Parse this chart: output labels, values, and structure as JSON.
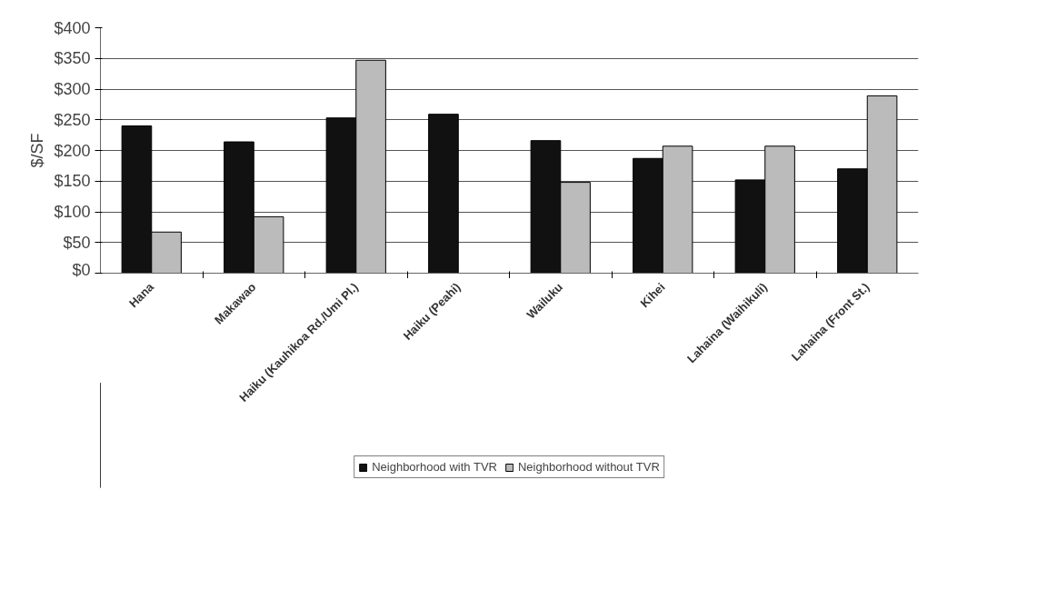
{
  "chart_data": {
    "type": "bar",
    "ylabel": "$/SF",
    "categories": [
      "Hana",
      "Makawao",
      "Haiku (Kauhikoa Rd./Umi Pl.)",
      "Haiku (Peahi)",
      "Wailuku",
      "Kihei",
      "Lahaina (Waihikuli)",
      "Lahaina (Front St.)"
    ],
    "series": [
      {
        "name": "Neighborhood with TVR",
        "color": "#111111",
        "values": [
          240,
          214,
          253,
          259,
          216,
          187,
          152,
          170
        ]
      },
      {
        "name": "Neighborhood without TVR",
        "color": "#bbbbbb",
        "values": [
          67,
          92,
          347,
          null,
          148,
          207,
          207,
          289
        ]
      }
    ],
    "ylim": [
      0,
      400
    ],
    "yticks": [
      {
        "value": 0,
        "label": "$0"
      },
      {
        "value": 50,
        "label": "$50"
      },
      {
        "value": 100,
        "label": "$100"
      },
      {
        "value": 150,
        "label": "$150"
      },
      {
        "value": 200,
        "label": "$200"
      },
      {
        "value": 250,
        "label": "$250"
      },
      {
        "value": 300,
        "label": "$300"
      },
      {
        "value": 350,
        "label": "$350"
      },
      {
        "value": 400,
        "label": "$400"
      }
    ],
    "grid": "y",
    "legend": "bottom"
  }
}
